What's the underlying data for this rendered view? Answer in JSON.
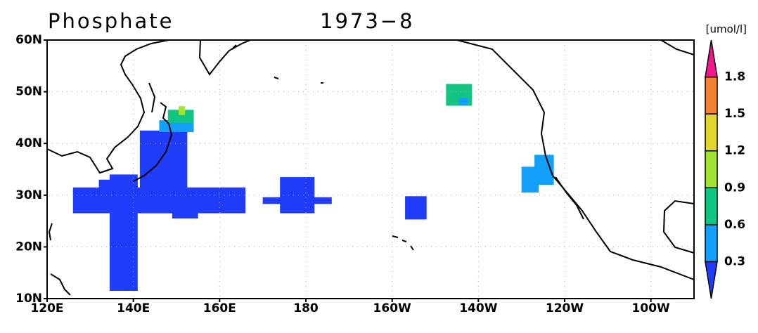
{
  "title": "Phosphate",
  "period": "1973−8",
  "unit": "[umol/l]",
  "lon_range": [
    120,
    270
  ],
  "lat_range": [
    10,
    60
  ],
  "lon_ticks": [
    {
      "value": 120,
      "label": "120E"
    },
    {
      "value": 140,
      "label": "140E"
    },
    {
      "value": 160,
      "label": "160E"
    },
    {
      "value": 180,
      "label": "180"
    },
    {
      "value": 200,
      "label": "160W"
    },
    {
      "value": 220,
      "label": "140W"
    },
    {
      "value": 240,
      "label": "120W"
    },
    {
      "value": 260,
      "label": "100W"
    }
  ],
  "lat_ticks": [
    {
      "value": 10,
      "label": "10N"
    },
    {
      "value": 20,
      "label": "20N"
    },
    {
      "value": 30,
      "label": "30N"
    },
    {
      "value": 40,
      "label": "40N"
    },
    {
      "value": 50,
      "label": "50N"
    },
    {
      "value": 60,
      "label": "60N"
    }
  ],
  "grid": true,
  "colorbar": {
    "levels": [
      0.3,
      0.6,
      0.9,
      1.2,
      1.5,
      1.8
    ],
    "colors": [
      "#1f3cf8",
      "#12a0fa",
      "#12c582",
      "#a2e232",
      "#e2d532",
      "#f08230",
      "#f01690"
    ]
  },
  "patches": [
    {
      "lon": [
        126,
        166
      ],
      "lat": [
        26.5,
        31.5
      ],
      "value": 0.2
    },
    {
      "lon": [
        141.5,
        152.5
      ],
      "lat": [
        26.5,
        42.5
      ],
      "value": 0.2
    },
    {
      "lon": [
        134.5,
        141
      ],
      "lat": [
        11.5,
        34
      ],
      "value": 0.2
    },
    {
      "lon": [
        132,
        141
      ],
      "lat": [
        28,
        33
      ],
      "value": 0.2
    },
    {
      "lon": [
        149,
        155
      ],
      "lat": [
        25.5,
        29
      ],
      "value": 0.2
    },
    {
      "lon": [
        174,
        182
      ],
      "lat": [
        26.5,
        33.5
      ],
      "value": 0.2
    },
    {
      "lon": [
        170,
        186
      ],
      "lat": [
        28.3,
        29.6
      ],
      "value": 0.2
    },
    {
      "lon": [
        203,
        208
      ],
      "lat": [
        25.3,
        29.8
      ],
      "value": 0.2
    },
    {
      "lon": [
        212.5,
        218.5
      ],
      "lat": [
        47.3,
        51.5
      ],
      "value": 0.7
    },
    {
      "lon": [
        215.5,
        217.5
      ],
      "lat": [
        47.3,
        48.8
      ],
      "value": 0.5
    },
    {
      "lon": [
        230,
        234
      ],
      "lat": [
        30.5,
        35.5
      ],
      "value": 0.5
    },
    {
      "lon": [
        233,
        237.5
      ],
      "lat": [
        32,
        37.8
      ],
      "value": 0.5
    },
    {
      "lon": [
        146,
        154
      ],
      "lat": [
        42.2,
        44.5
      ],
      "value": 0.5
    },
    {
      "lon": [
        148,
        154
      ],
      "lat": [
        44,
        46.5
      ],
      "value": 0.7
    },
    {
      "lon": [
        150.5,
        152
      ],
      "lat": [
        45.5,
        47.2
      ],
      "value": 1.0
    }
  ]
}
